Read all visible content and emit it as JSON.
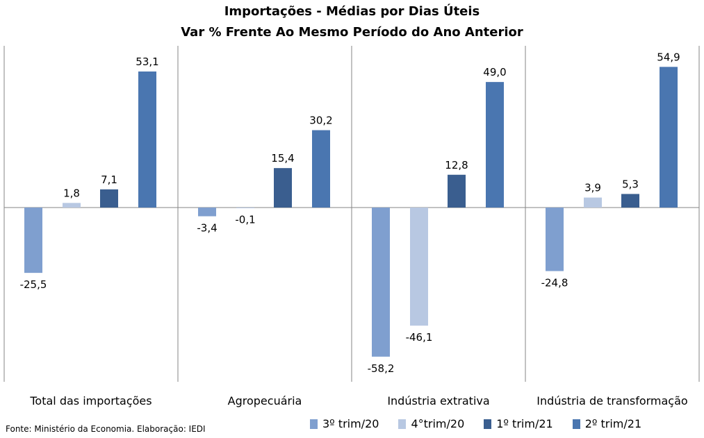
{
  "chart_data": {
    "type": "bar",
    "title": "Importações - Médias por Dias Úteis",
    "subtitle": "Var % Frente Ao Mesmo Período do Ano Anterior",
    "categories": [
      "Total das importações",
      "Agropecuária",
      "Indústria extrativa",
      "Indústria de transformação"
    ],
    "series": [
      {
        "name": "3º trim/20",
        "color": "#7f9fcf",
        "values": [
          -25.5,
          -3.4,
          -58.2,
          -24.8
        ],
        "labels": [
          "-25,5",
          "-3,4",
          "-58,2",
          "-24,8"
        ]
      },
      {
        "name": "4°trim/20",
        "color": "#b8c8e2",
        "values": [
          1.8,
          -0.1,
          -46.1,
          3.9
        ],
        "labels": [
          "1,8",
          "-0,1",
          "-46,1",
          "3,9"
        ]
      },
      {
        "name": "1º trim/21",
        "color": "#3a5e8f",
        "values": [
          7.1,
          15.4,
          12.8,
          5.3
        ],
        "labels": [
          "7,1",
          "15,4",
          "12,8",
          "5,3"
        ]
      },
      {
        "name": "2º trim/21",
        "color": "#4a76b0",
        "values": [
          53.1,
          30.2,
          49.0,
          54.9
        ],
        "labels": [
          "53,1",
          "30,2",
          "49,0",
          "54,9"
        ]
      }
    ],
    "ylim": [
      -68,
      64
    ],
    "grid": false,
    "legend_position": "bottom-right"
  },
  "source": "Fonte: Ministério da Economia. Elaboração: IEDI"
}
